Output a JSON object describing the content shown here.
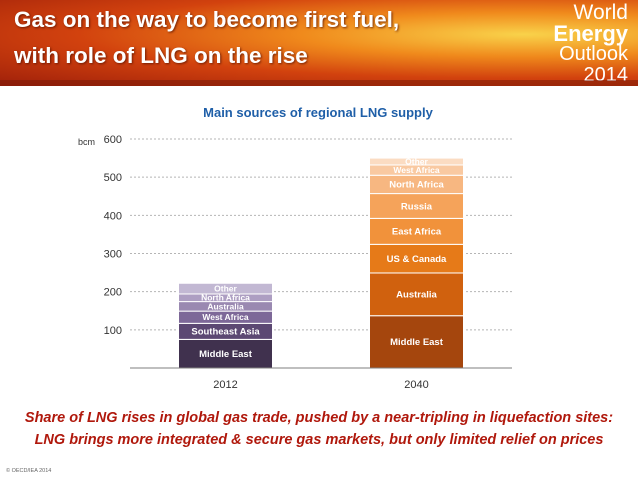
{
  "slide": {
    "title_line1": "Gas on the way to become first fuel,",
    "title_line2": "with role of LNG on the rise",
    "brand_line1": "World",
    "brand_line2": "Energy",
    "brand_line3": "Outlook",
    "brand_line4": "2014",
    "caption_line1": "Share of LNG rises in global gas trade, pushed by a near-tripling in liquefaction sites:",
    "caption_line2": "LNG brings more integrated & secure gas markets, but only limited relief on prices",
    "copyright": "© OECD/IEA 2014"
  },
  "chart_data": {
    "type": "bar",
    "stacked": true,
    "title": "Main sources of regional LNG supply",
    "ylabel": "bcm",
    "ylim": [
      0,
      600
    ],
    "yticks": [
      100,
      200,
      300,
      400,
      500,
      600
    ],
    "grid": true,
    "categories": [
      "2012",
      "2040"
    ],
    "stacks": [
      {
        "category": "2012",
        "segments": [
          {
            "name": "Middle East",
            "value": 75,
            "color": "#40314e"
          },
          {
            "name": "Southeast Asia",
            "value": 42,
            "color": "#5c4873"
          },
          {
            "name": "West Africa",
            "value": 32,
            "color": "#7d6898"
          },
          {
            "name": "Australia",
            "value": 25,
            "color": "#9a89b1"
          },
          {
            "name": "North Africa",
            "value": 20,
            "color": "#ad9ec2"
          },
          {
            "name": "Other",
            "value": 28,
            "color": "#c2b8d3"
          }
        ]
      },
      {
        "category": "2040",
        "segments": [
          {
            "name": "Middle East",
            "value": 137,
            "color": "#a5460d"
          },
          {
            "name": "Australia",
            "value": 112,
            "color": "#d0610e"
          },
          {
            "name": "US & Canada",
            "value": 75,
            "color": "#e67a18"
          },
          {
            "name": "East Africa",
            "value": 68,
            "color": "#f1923b"
          },
          {
            "name": "Russia",
            "value": 65,
            "color": "#f5a35a"
          },
          {
            "name": "North Africa",
            "value": 48,
            "color": "#f7b781"
          },
          {
            "name": "West Africa",
            "value": 27,
            "color": "#f9c9a1"
          },
          {
            "name": "Other",
            "value": 18,
            "color": "#fbdcc2"
          }
        ]
      }
    ]
  }
}
